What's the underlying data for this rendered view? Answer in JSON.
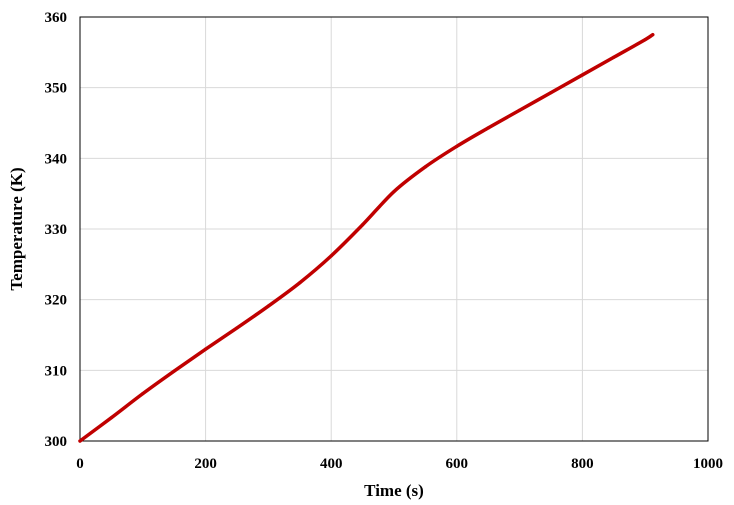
{
  "chart_data": {
    "type": "line",
    "title": "",
    "xlabel": "Time (s)",
    "ylabel": "Temperature (K)",
    "xlim": [
      0,
      1000
    ],
    "ylim": [
      300,
      360
    ],
    "xticks": [
      0,
      200,
      400,
      600,
      800,
      1000
    ],
    "yticks": [
      300,
      310,
      320,
      330,
      340,
      350,
      360
    ],
    "grid": true,
    "legend": "none",
    "series": [
      {
        "color": "#C00000",
        "x": [
          0,
          50,
          100,
          150,
          200,
          250,
          300,
          350,
          400,
          450,
          500,
          550,
          600,
          650,
          700,
          750,
          800,
          850,
          900,
          912
        ],
        "y": [
          300.0,
          303.3,
          306.7,
          309.9,
          313.0,
          316.0,
          319.1,
          322.4,
          326.2,
          330.6,
          335.3,
          338.8,
          341.7,
          344.3,
          346.8,
          349.3,
          351.8,
          354.3,
          356.8,
          357.5
        ]
      }
    ]
  }
}
